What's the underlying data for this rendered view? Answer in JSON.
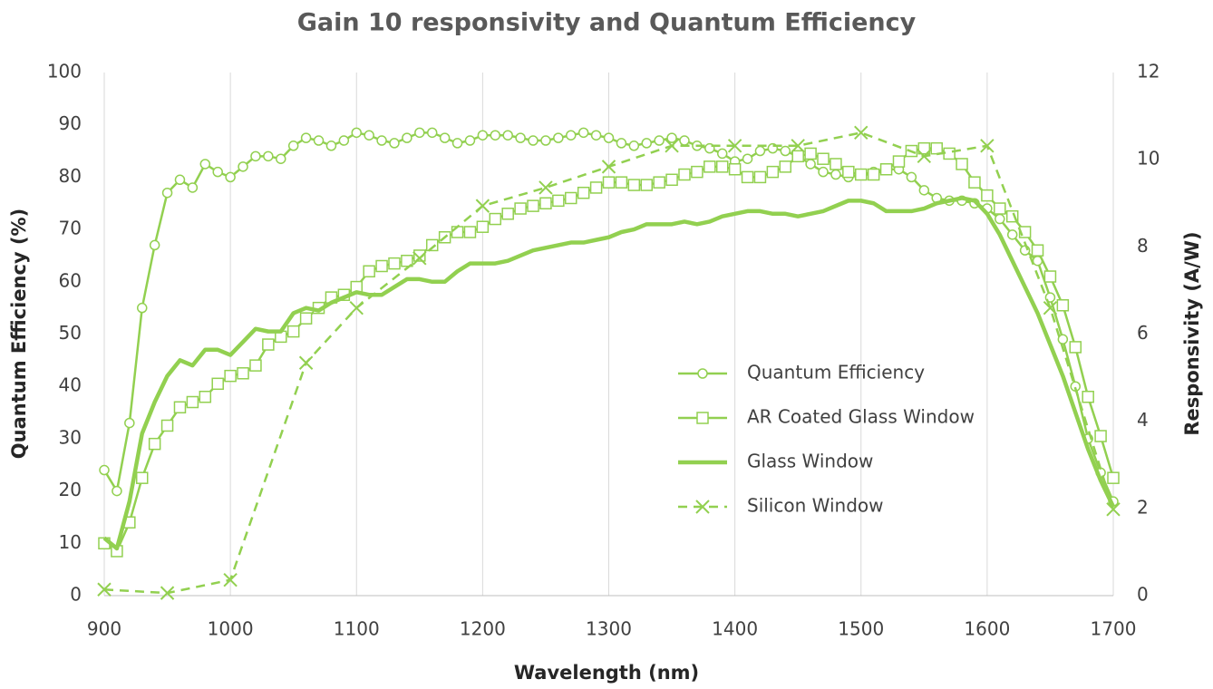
{
  "chart_data": {
    "type": "line",
    "title": "Gain 10 responsivity and Quantum Efficiency",
    "xlabel": "Wavelength (nm)",
    "ylabel": "Quantum Efficiency (%)",
    "y2label": "Responsivity (A/W)",
    "xlim": [
      900,
      1700
    ],
    "xticks": [
      900,
      1000,
      1100,
      1200,
      1300,
      1400,
      1500,
      1600,
      1700
    ],
    "ylim": [
      0,
      100
    ],
    "yticks": [
      0,
      10,
      20,
      30,
      40,
      50,
      60,
      70,
      80,
      90,
      100
    ],
    "y2lim": [
      0,
      12
    ],
    "y2ticks": [
      0,
      2,
      4,
      6,
      8,
      10,
      12
    ],
    "grid": "x",
    "legend": "center-right",
    "x": [
      900,
      910,
      920,
      930,
      940,
      950,
      960,
      970,
      980,
      990,
      1000,
      1010,
      1020,
      1030,
      1040,
      1050,
      1060,
      1070,
      1080,
      1090,
      1100,
      1110,
      1120,
      1130,
      1140,
      1150,
      1160,
      1170,
      1180,
      1190,
      1200,
      1210,
      1220,
      1230,
      1240,
      1250,
      1260,
      1270,
      1280,
      1290,
      1300,
      1310,
      1320,
      1330,
      1340,
      1350,
      1360,
      1370,
      1380,
      1390,
      1400,
      1410,
      1420,
      1430,
      1440,
      1450,
      1460,
      1470,
      1480,
      1490,
      1500,
      1510,
      1520,
      1530,
      1540,
      1550,
      1560,
      1570,
      1580,
      1590,
      1600,
      1610,
      1620,
      1630,
      1640,
      1650,
      1660,
      1670,
      1680,
      1690,
      1700
    ],
    "series": [
      {
        "name": "Quantum Efficiency",
        "color": "#92d050",
        "marker": "circle",
        "dashed": false,
        "values": [
          24,
          20,
          33,
          55,
          67,
          77,
          79.5,
          78,
          82.5,
          81,
          80,
          82,
          84,
          84,
          83.5,
          86,
          87.5,
          87,
          86,
          87,
          88.5,
          88,
          87,
          86.5,
          87.5,
          88.5,
          88.5,
          87.5,
          86.5,
          87,
          88,
          88,
          88,
          87.5,
          87,
          87,
          87.5,
          88,
          88.5,
          88,
          87.5,
          86.5,
          86,
          86.5,
          87,
          87.5,
          87,
          86,
          85.5,
          84.5,
          83,
          83.5,
          85,
          85.5,
          85,
          84,
          82.5,
          81,
          80.5,
          80,
          80.5,
          81,
          81.5,
          81.5,
          80,
          77.5,
          76,
          75.5,
          75.5,
          75,
          74,
          72,
          69,
          66,
          64,
          57,
          49,
          40,
          30,
          23.5,
          18
        ]
      },
      {
        "name": "AR Coated Glass Window",
        "color": "#92d050",
        "marker": "square",
        "dashed": false,
        "axis": "y2",
        "values": [
          1.2,
          1.02,
          1.68,
          2.7,
          3.48,
          3.9,
          4.32,
          4.44,
          4.56,
          4.86,
          5.04,
          5.1,
          5.28,
          5.76,
          5.94,
          6.06,
          6.36,
          6.6,
          6.84,
          6.9,
          7.08,
          7.44,
          7.56,
          7.62,
          7.68,
          7.8,
          8.04,
          8.22,
          8.34,
          8.34,
          8.46,
          8.64,
          8.76,
          8.88,
          8.94,
          9.0,
          9.06,
          9.12,
          9.24,
          9.36,
          9.48,
          9.48,
          9.42,
          9.42,
          9.48,
          9.54,
          9.66,
          9.72,
          9.84,
          9.84,
          9.78,
          9.6,
          9.6,
          9.72,
          9.84,
          10.08,
          10.14,
          10.02,
          9.9,
          9.72,
          9.66,
          9.66,
          9.78,
          9.96,
          10.2,
          10.26,
          10.26,
          10.14,
          9.9,
          9.48,
          9.18,
          8.88,
          8.7,
          8.34,
          7.92,
          7.32,
          6.66,
          5.7,
          4.56,
          3.66,
          2.7
        ]
      },
      {
        "name": "Glass Window",
        "color": "#92d050",
        "marker": "none",
        "dashed": false,
        "axis": "y2",
        "values": [
          1.32,
          1.08,
          2.16,
          3.72,
          4.44,
          5.04,
          5.4,
          5.28,
          5.64,
          5.64,
          5.52,
          5.82,
          6.12,
          6.06,
          6.06,
          6.48,
          6.6,
          6.54,
          6.72,
          6.84,
          6.96,
          6.9,
          6.9,
          7.08,
          7.26,
          7.26,
          7.2,
          7.2,
          7.44,
          7.62,
          7.62,
          7.62,
          7.68,
          7.8,
          7.92,
          7.98,
          8.04,
          8.1,
          8.1,
          8.16,
          8.22,
          8.34,
          8.4,
          8.52,
          8.52,
          8.52,
          8.58,
          8.52,
          8.58,
          8.7,
          8.76,
          8.82,
          8.82,
          8.76,
          8.76,
          8.7,
          8.76,
          8.82,
          8.94,
          9.06,
          9.06,
          9.0,
          8.82,
          8.82,
          8.82,
          8.88,
          9.0,
          9.06,
          9.12,
          9.06,
          8.76,
          8.28,
          7.68,
          7.08,
          6.48,
          5.76,
          5.04,
          4.2,
          3.36,
          2.64,
          2.04
        ]
      },
      {
        "name": "Silicon Window",
        "color": "#92d050",
        "marker": "x",
        "dashed": true,
        "axis": "y2",
        "x": [
          900,
          950,
          1000,
          1060,
          1100,
          1150,
          1200,
          1250,
          1300,
          1350,
          1400,
          1450,
          1500,
          1550,
          1600,
          1650,
          1700
        ],
        "values": [
          0.14,
          0.06,
          0.36,
          5.34,
          6.6,
          7.74,
          8.94,
          9.36,
          9.84,
          10.32,
          10.32,
          10.32,
          10.62,
          10.08,
          10.32,
          6.6,
          1.98
        ]
      }
    ]
  }
}
